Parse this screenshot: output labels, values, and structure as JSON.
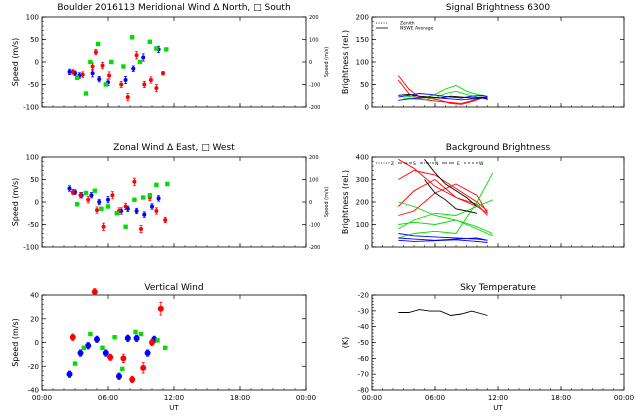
{
  "chart_data": [
    {
      "id": "meridional",
      "type": "scatter",
      "title": "Boulder   2016113    Meridional Wind   Δ North, □ South",
      "ylabel": "Speed (m/s)",
      "ylabel2": "Speed (m/s)",
      "xlim": [
        0,
        24
      ],
      "ylim": [
        -100,
        100
      ],
      "ylim2": [
        -200,
        200
      ],
      "yticks": [
        "100",
        "50",
        "0",
        "-50",
        "-100"
      ],
      "yticks2": [
        "200",
        "100",
        "0",
        "-100",
        "-200"
      ],
      "xticks": [
        "",
        "",
        "",
        "",
        ""
      ],
      "series": [
        {
          "color": "#0000ff",
          "marker": "circle",
          "x": [
            2.5,
            3.0,
            3.4,
            4.6,
            5.2,
            6.0,
            7.6,
            8.3,
            9.2,
            10.6
          ],
          "y": [
            -22,
            -25,
            -30,
            -25,
            -38,
            -45,
            -40,
            -15,
            10,
            28
          ],
          "err": [
            6,
            5,
            6,
            8,
            6,
            7,
            8,
            6,
            8,
            7
          ]
        },
        {
          "color": "#ff0000",
          "marker": "circle",
          "x": [
            2.8,
            3.7,
            4.6,
            4.9,
            5.5,
            6.1,
            7.2,
            7.8,
            8.6,
            9.3,
            9.9,
            10.4,
            11.0
          ],
          "y": [
            -22,
            -28,
            -10,
            22,
            -8,
            -30,
            -50,
            -78,
            15,
            -50,
            -40,
            -58,
            -25
          ],
          "err": [
            5,
            6,
            8,
            6,
            7,
            8,
            7,
            8,
            8,
            7,
            7,
            8,
            4
          ]
        },
        {
          "color": "#00dd00",
          "marker": "square",
          "x": [
            3.2,
            4.0,
            4.4,
            5.1,
            5.8,
            6.3,
            7.4,
            8.2,
            8.9,
            9.8,
            10.4,
            11.3
          ],
          "y": [
            -35,
            -70,
            0,
            40,
            -50,
            0,
            -10,
            55,
            0,
            45,
            30,
            28
          ],
          "err": [
            0,
            0,
            0,
            0,
            0,
            0,
            0,
            0,
            0,
            0,
            0,
            0
          ]
        }
      ]
    },
    {
      "id": "signal",
      "type": "line",
      "title": "Signal Brightness        6300",
      "ylabel": "Brightness (rel.)",
      "xlim": [
        0,
        24
      ],
      "ylim": [
        0,
        200
      ],
      "yticks": [
        "200",
        "150",
        "100",
        "50",
        "0"
      ],
      "xticks": [
        "",
        "",
        "",
        "",
        ""
      ],
      "legend": [
        "Zenith",
        "NSWE Average"
      ],
      "series": [
        {
          "color": "#ff0000",
          "x": [
            2.5,
            3.5,
            4.5,
            5.5,
            6.5,
            7.5,
            8.5,
            9.5,
            10.5,
            11.0
          ],
          "y": [
            70,
            40,
            22,
            20,
            15,
            8,
            6,
            12,
            20,
            18
          ]
        },
        {
          "color": "#ff0000",
          "x": [
            2.5,
            3.5,
            4.5,
            5.5,
            6.5,
            7.5,
            8.5,
            9.5,
            10.5,
            11.0
          ],
          "y": [
            60,
            30,
            18,
            15,
            12,
            10,
            8,
            14,
            22,
            16
          ]
        },
        {
          "color": "#00dd00",
          "x": [
            3.0,
            4.0,
            5.0,
            6.0,
            7.0,
            8.0,
            9.0,
            10.0,
            11.0
          ],
          "y": [
            25,
            22,
            20,
            28,
            40,
            48,
            35,
            28,
            24
          ]
        },
        {
          "color": "#00dd00",
          "x": [
            3.0,
            4.0,
            5.0,
            6.0,
            7.0,
            8.0,
            9.0,
            10.0,
            11.0
          ],
          "y": [
            20,
            18,
            16,
            20,
            30,
            35,
            28,
            22,
            20
          ]
        },
        {
          "color": "#0000ff",
          "x": [
            2.5,
            3.5,
            4.5,
            5.5,
            6.5,
            7.5,
            8.5,
            9.5,
            10.5,
            11.0
          ],
          "y": [
            22,
            26,
            30,
            28,
            25,
            22,
            20,
            24,
            26,
            22
          ]
        },
        {
          "color": "#0000ff",
          "x": [
            2.5,
            3.5,
            4.5,
            5.5,
            6.5,
            7.5,
            8.5,
            9.5,
            10.5,
            11.0
          ],
          "y": [
            15,
            18,
            20,
            22,
            20,
            18,
            16,
            18,
            20,
            18
          ]
        },
        {
          "color": "#000000",
          "x": [
            2.5,
            3.5,
            4.5,
            5.5,
            6.5,
            7.5,
            8.5,
            9.5,
            10.5,
            11.0
          ],
          "y": [
            26,
            28,
            24,
            22,
            20,
            24,
            22,
            20,
            22,
            20
          ]
        }
      ]
    },
    {
      "id": "zonal",
      "type": "scatter",
      "title": "Zonal Wind       Δ East, □ West",
      "ylabel": "Speed (m/s)",
      "ylabel2": "Speed (m/s)",
      "xlim": [
        0,
        24
      ],
      "ylim": [
        -100,
        100
      ],
      "ylim2": [
        -200,
        200
      ],
      "yticks": [
        "100",
        "50",
        "0",
        "-50",
        "-100"
      ],
      "yticks2": [
        "200",
        "100",
        "0",
        "-100",
        "-200"
      ],
      "xticks": [
        "",
        "",
        "",
        "",
        ""
      ],
      "series": [
        {
          "color": "#0000ff",
          "marker": "circle",
          "x": [
            2.5,
            3.0,
            3.6,
            4.5,
            5.2,
            6.0,
            7.2,
            7.8,
            8.6,
            9.3,
            10.0,
            10.6
          ],
          "y": [
            30,
            22,
            15,
            15,
            0,
            5,
            -20,
            -15,
            -20,
            -28,
            -10,
            8
          ],
          "err": [
            6,
            5,
            6,
            6,
            6,
            7,
            7,
            6,
            6,
            6,
            6,
            6
          ]
        },
        {
          "color": "#ff0000",
          "marker": "circle",
          "x": [
            2.8,
            3.5,
            4.2,
            5.0,
            5.6,
            6.4,
            7.0,
            7.6,
            8.4,
            9.0,
            9.8,
            10.4,
            11.2
          ],
          "y": [
            22,
            15,
            5,
            -18,
            -55,
            15,
            -20,
            -10,
            45,
            -60,
            10,
            -20,
            -40
          ],
          "err": [
            6,
            6,
            7,
            7,
            8,
            8,
            7,
            7,
            8,
            8,
            7,
            7,
            6
          ]
        },
        {
          "color": "#00dd00",
          "marker": "square",
          "x": [
            3.2,
            4.0,
            4.8,
            5.4,
            6.0,
            6.8,
            7.6,
            8.4,
            9.2,
            9.8,
            10.4,
            11.4
          ],
          "y": [
            -5,
            20,
            25,
            -15,
            -10,
            -25,
            -55,
            5,
            10,
            15,
            38,
            40
          ],
          "err": [
            0,
            0,
            0,
            0,
            0,
            0,
            0,
            0,
            0,
            0,
            0,
            0
          ]
        }
      ]
    },
    {
      "id": "background",
      "type": "line",
      "title": "Background Brightness",
      "ylabel": "Brightness (rel.)",
      "xlim": [
        0,
        24
      ],
      "ylim": [
        0,
        400
      ],
      "yticks": [
        "400",
        "300",
        "200",
        "100",
        "0"
      ],
      "xticks": [
        "",
        "",
        "",
        "",
        ""
      ],
      "legend_labels": [
        "Z",
        "S",
        "N",
        "E",
        "W"
      ],
      "series": [
        {
          "color": "#ff0000",
          "x": [
            2.5,
            4.0,
            6.0,
            8.0,
            10.0,
            11.0
          ],
          "y": [
            390,
            350,
            270,
            220,
            180,
            150
          ]
        },
        {
          "color": "#ff0000",
          "x": [
            2.5,
            4.0,
            6.0,
            8.0,
            10.0,
            11.0
          ],
          "y": [
            300,
            340,
            320,
            260,
            200,
            160
          ]
        },
        {
          "color": "#ff0000",
          "x": [
            2.5,
            4.0,
            6.0,
            8.0,
            10.0,
            11.0
          ],
          "y": [
            140,
            160,
            240,
            280,
            230,
            150
          ]
        },
        {
          "color": "#ff0000",
          "x": [
            2.5,
            4.0,
            6.0,
            8.0,
            10.0,
            11.0
          ],
          "y": [
            180,
            250,
            300,
            220,
            190,
            140
          ]
        },
        {
          "color": "#00dd00",
          "x": [
            2.5,
            4.0,
            6.0,
            8.0,
            10.0,
            11.5
          ],
          "y": [
            40,
            60,
            70,
            60,
            200,
            330
          ]
        },
        {
          "color": "#00dd00",
          "x": [
            2.5,
            4.0,
            6.0,
            8.0,
            10.0,
            11.5
          ],
          "y": [
            100,
            110,
            100,
            120,
            90,
            60
          ]
        },
        {
          "color": "#00dd00",
          "x": [
            2.5,
            4.0,
            6.0,
            8.0,
            10.0,
            11.5
          ],
          "y": [
            80,
            120,
            150,
            140,
            180,
            210
          ]
        },
        {
          "color": "#00dd00",
          "x": [
            2.5,
            4.0,
            6.0,
            8.0,
            10.0,
            11.5
          ],
          "y": [
            200,
            180,
            140,
            120,
            80,
            50
          ]
        },
        {
          "color": "#0000ff",
          "x": [
            2.5,
            4.0,
            6.0,
            8.0,
            10.0,
            11.0
          ],
          "y": [
            60,
            50,
            45,
            40,
            35,
            30
          ]
        },
        {
          "color": "#0000ff",
          "x": [
            2.5,
            4.0,
            6.0,
            8.0,
            10.0,
            11.0
          ],
          "y": [
            40,
            35,
            30,
            35,
            40,
            30
          ]
        },
        {
          "color": "#0000ff",
          "x": [
            2.5,
            4.0,
            6.0,
            8.0,
            10.0,
            11.0
          ],
          "y": [
            30,
            25,
            28,
            32,
            25,
            20
          ]
        },
        {
          "color": "#000000",
          "x": [
            5.0,
            6.0,
            7.0,
            8.0,
            9.0,
            10.0
          ],
          "y": [
            300,
            240,
            210,
            170,
            160,
            150
          ]
        },
        {
          "color": "#000000",
          "x": [
            5.0,
            6.0,
            7.0,
            8.0,
            9.0,
            10.0
          ],
          "y": [
            390,
            330,
            280,
            250,
            220,
            180
          ]
        }
      ]
    },
    {
      "id": "vertical",
      "type": "scatter",
      "title": "Vertical Wind",
      "ylabel": "Speed (m/s)",
      "xlim": [
        0,
        24
      ],
      "ylim": [
        -45,
        45
      ],
      "yticks": [
        "40",
        "20",
        "0",
        "-20",
        "-40"
      ],
      "xticks": [
        "00:00",
        "06:00",
        "12:00",
        "18:00",
        "00:00"
      ],
      "xlabel": "UT",
      "series": [
        {
          "color": "#0000ff",
          "marker": "circle",
          "x": [
            2.5,
            3.5,
            4.2,
            5.0,
            5.8,
            7.0,
            7.8,
            8.6,
            9.6,
            10.2
          ],
          "y": [
            -30,
            -10,
            -3,
            3,
            -10,
            -32,
            4,
            4,
            -10,
            3
          ],
          "err": [
            3,
            3,
            3,
            3,
            3,
            3,
            3,
            3,
            3,
            3
          ]
        },
        {
          "color": "#ff0000",
          "marker": "circle",
          "x": [
            2.8,
            4.8,
            6.2,
            7.4,
            8.2,
            9.2,
            10.0,
            10.8
          ],
          "y": [
            5,
            48,
            -14,
            -15,
            -35,
            -24,
            0,
            32
          ],
          "err": [
            3,
            3,
            3,
            4,
            3,
            5,
            3,
            6
          ]
        },
        {
          "color": "#00dd00",
          "marker": "square",
          "x": [
            3.0,
            3.8,
            4.4,
            5.5,
            6.6,
            7.3,
            8.5,
            9.0,
            10.5,
            11.2
          ],
          "y": [
            -20,
            -5,
            8,
            -5,
            5,
            -25,
            10,
            8,
            2,
            -5
          ],
          "err": [
            0,
            0,
            0,
            0,
            0,
            0,
            0,
            0,
            0,
            0
          ]
        }
      ]
    },
    {
      "id": "skytemp",
      "type": "line",
      "title": "Sky Temperature",
      "ylabel": "(K)",
      "xlim": [
        0,
        24
      ],
      "ylim": [
        -80,
        -15
      ],
      "yticks": [
        "-20",
        "-30",
        "-40",
        "-50",
        "-60",
        "-70",
        "-80"
      ],
      "xticks": [
        "00:00",
        "06:00",
        "12:00",
        "18:00",
        "00:00"
      ],
      "xlabel": "UT",
      "series": [
        {
          "color": "#000000",
          "x": [
            2.5,
            3.5,
            4.5,
            5.5,
            6.5,
            7.5,
            8.5,
            9.5,
            10.5,
            11.0
          ],
          "y": [
            -27,
            -27,
            -25,
            -26,
            -26,
            -29,
            -28,
            -26,
            -28,
            -29
          ]
        }
      ]
    }
  ]
}
